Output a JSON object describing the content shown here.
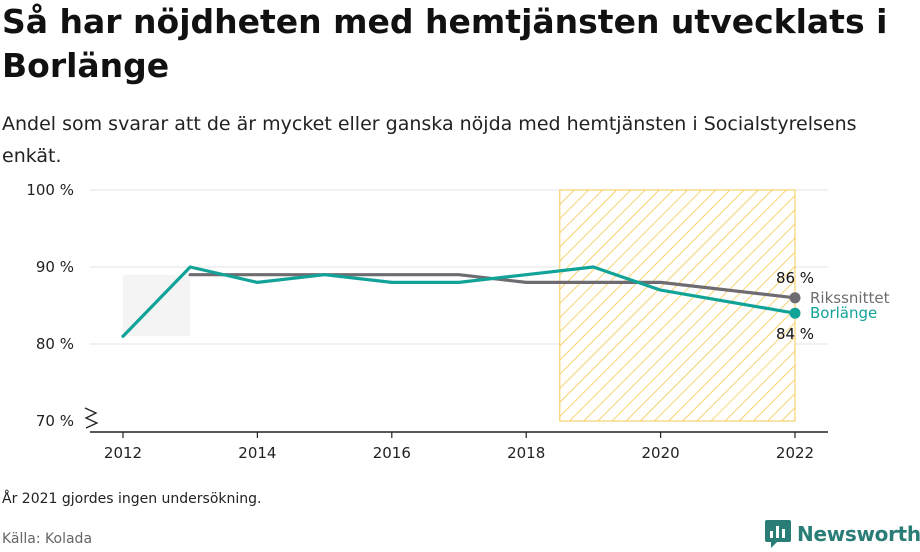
{
  "title": "Så har nöjdheten med hemtjänsten utvecklats i Borlänge",
  "subtitle": "Andel som svarar att de är mycket eller ganska nöjda med hemtjänsten i Socialstyrelsens enkät.",
  "footnote": "År 2021 gjordes ingen undersökning.",
  "source": "Källa: Kolada",
  "brand": {
    "name": "Newsworthy",
    "icon": "newsworthy-logo-icon"
  },
  "colors": {
    "borlange": "#12a398",
    "riket": "#6e6c71",
    "hatch": "#f6c84e",
    "grid": "#e3e3e3"
  },
  "chart_data": {
    "type": "line",
    "x": [
      2012,
      2013,
      2014,
      2015,
      2016,
      2017,
      2018,
      2019,
      2020,
      2022
    ],
    "x_ticks": [
      2012,
      2014,
      2016,
      2018,
      2020,
      2022
    ],
    "ylim": [
      70,
      100
    ],
    "y_ticks": [
      70,
      80,
      90,
      100
    ],
    "y_tick_labels": [
      "70 %",
      "80 %",
      "90 %",
      "100 %"
    ],
    "grid": true,
    "highlight_range": [
      2018.5,
      2022
    ],
    "series": [
      {
        "name": "Rikssnittet",
        "values": [
          null,
          89,
          89,
          89,
          89,
          89,
          88,
          88,
          88,
          86
        ],
        "end_label": "86 %"
      },
      {
        "name": "Borlänge",
        "values": [
          81,
          90,
          88,
          89,
          88,
          88,
          89,
          90,
          87,
          84
        ],
        "end_label": "84 %"
      }
    ]
  }
}
